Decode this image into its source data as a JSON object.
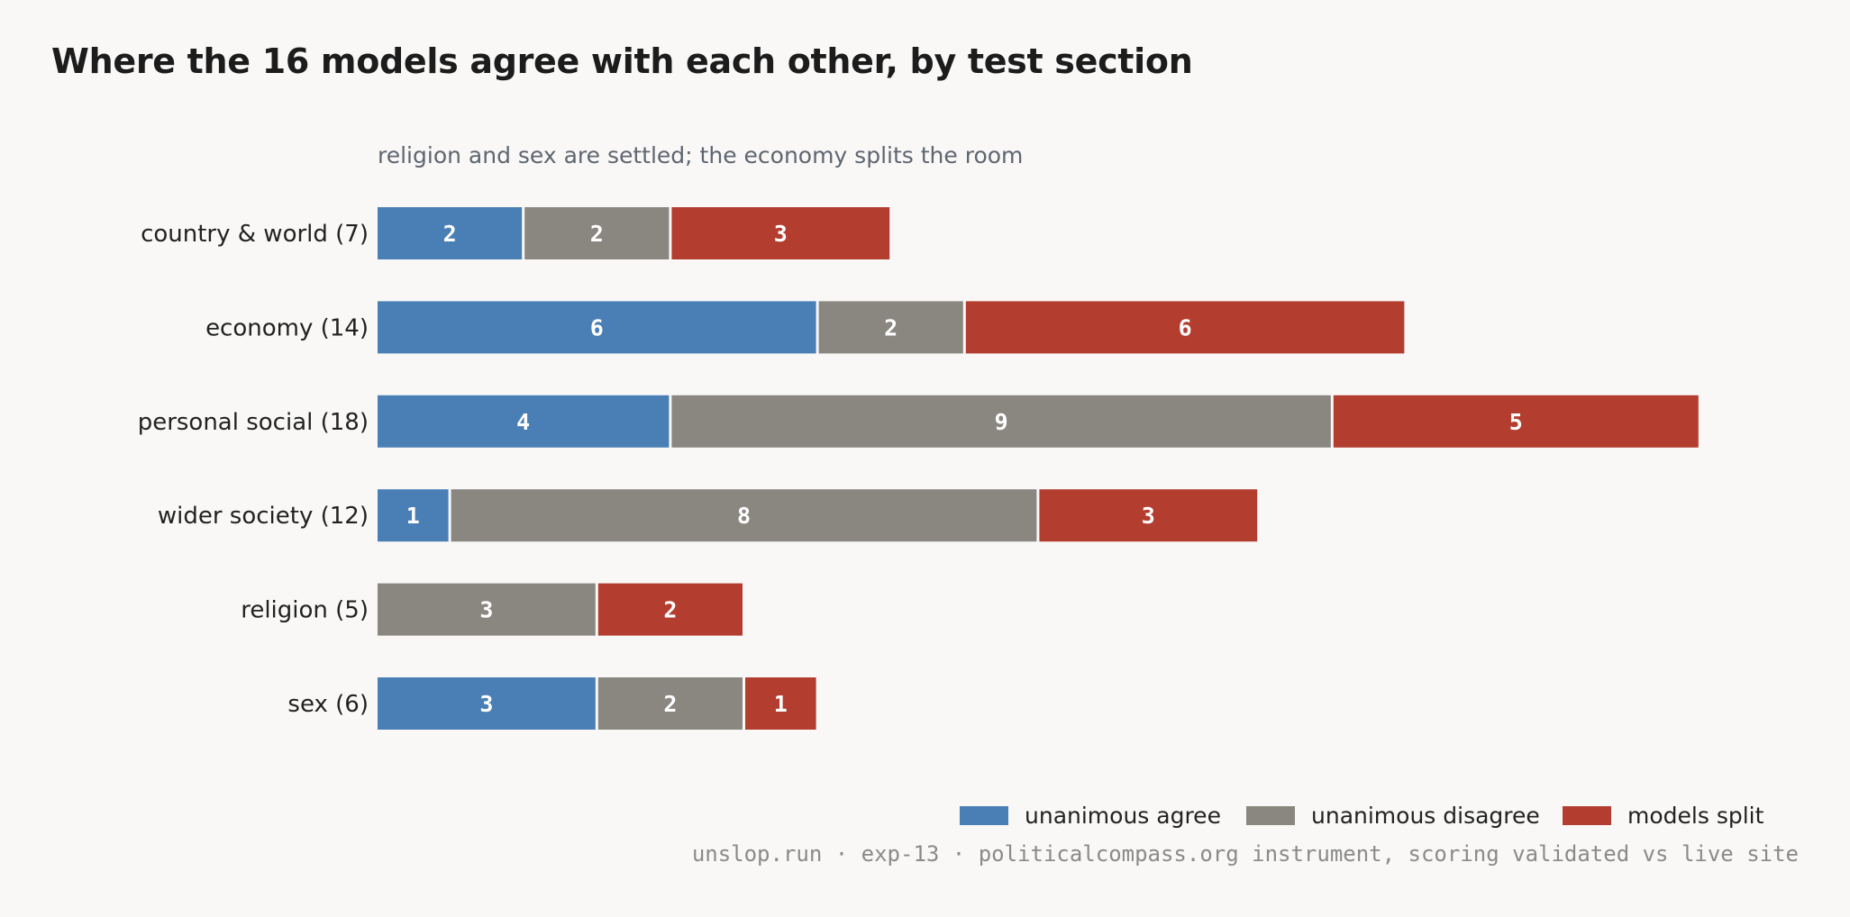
{
  "title": "Where the 16 models agree with each other, by test section",
  "footer": "unslop.run · exp-13 · politicalcompass.org instrument, scoring validated vs live site",
  "colors": {
    "background": "#f9f8f7",
    "unanimous_agree": "#4a7fb5",
    "unanimous_disagree": "#8a8780",
    "models_split": "#b33e30"
  },
  "chart_data": {
    "type": "bar",
    "orientation": "horizontal",
    "stacked": true,
    "subtitle": "religion and sex are settled; the economy splits the room",
    "categories": [
      "country & world (7)",
      "economy (14)",
      "personal social (18)",
      "wider society (12)",
      "religion (5)",
      "sex (6)"
    ],
    "series": [
      {
        "name": "unanimous agree",
        "values": [
          2,
          6,
          4,
          1,
          0,
          3
        ]
      },
      {
        "name": "unanimous disagree",
        "values": [
          2,
          2,
          9,
          8,
          3,
          2
        ]
      },
      {
        "name": "models split",
        "values": [
          3,
          6,
          5,
          3,
          2,
          1
        ]
      }
    ],
    "xlim": [
      0,
      18
    ],
    "grid": false,
    "legend": "bottom-right"
  }
}
